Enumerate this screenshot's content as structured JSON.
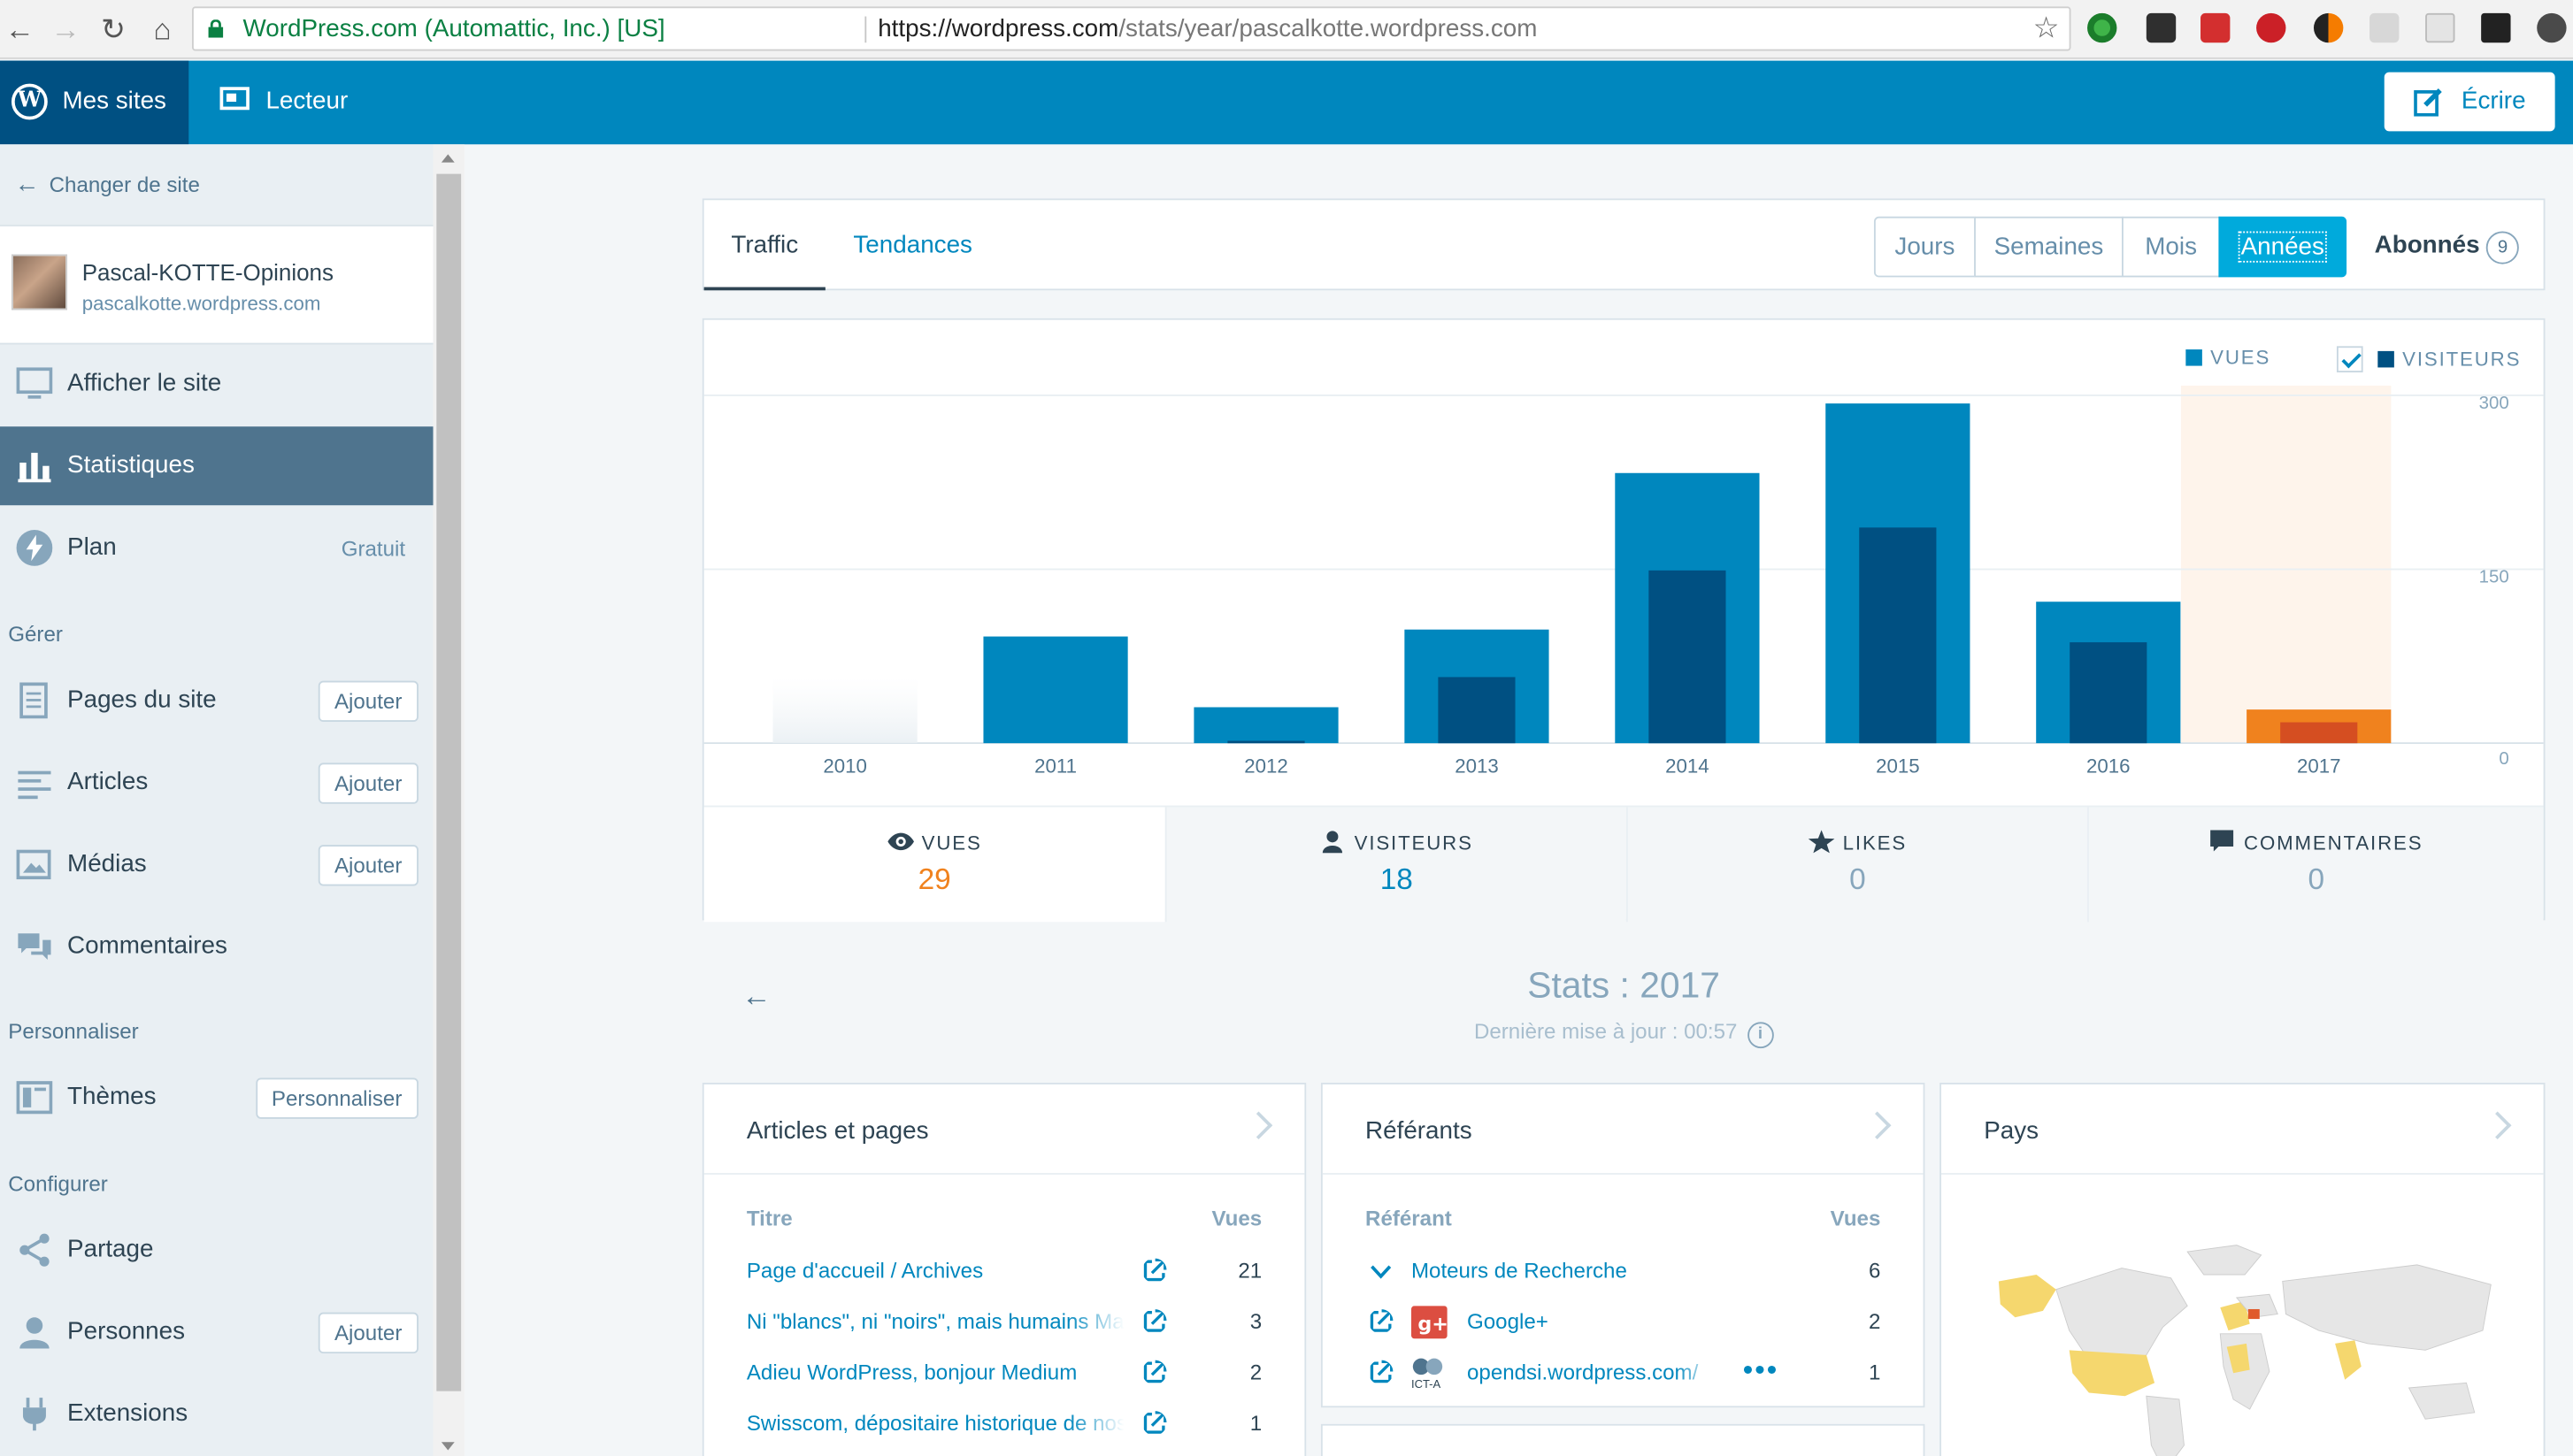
{
  "browser": {
    "secure_label": "WordPress.com (Automattic, Inc.) [US]",
    "url_host": "https://wordpress.com",
    "url_path": "/stats/year/pascalkotte.wordpress.com"
  },
  "masterbar": {
    "my_sites": "Mes sites",
    "reader": "Lecteur",
    "write": "Écrire"
  },
  "sidebar": {
    "change_site": "Changer de site",
    "site_name": "Pascal-KOTTE-Opinions",
    "site_url": "pascalkotte.wordpress.com",
    "view_site": "Afficher le site",
    "stats": "Statistiques",
    "plan": "Plan",
    "plan_badge": "Gratuit",
    "manage_heading": "Gérer",
    "pages": "Pages du site",
    "posts": "Articles",
    "media": "Médias",
    "comments": "Commentaires",
    "add_label": "Ajouter",
    "personalize_heading": "Personnaliser",
    "themes": "Thèmes",
    "customize_label": "Personnaliser",
    "configure_heading": "Configurer",
    "sharing": "Partage",
    "people": "Personnes",
    "plugins": "Extensions"
  },
  "tabs": {
    "traffic": "Traffic",
    "insights": "Tendances",
    "periods": [
      "Jours",
      "Semaines",
      "Mois",
      "Années"
    ],
    "active_period": "Années",
    "followers_label": "Abonnés",
    "followers_count": "9"
  },
  "legend": {
    "views": "VUES",
    "visitors": "VISITEURS"
  },
  "colors": {
    "views": "#0087be",
    "visitors": "#005082",
    "selected_views": "#f0821e",
    "selected_visitors": "#d54e21",
    "selected_bg": "#fef4eb",
    "accent": "#00aadc"
  },
  "chart_data": {
    "type": "bar",
    "categories": [
      "2010",
      "2011",
      "2012",
      "2013",
      "2014",
      "2015",
      "2016",
      "2017"
    ],
    "series": [
      {
        "name": "VUES",
        "values": [
          0,
          92,
          31,
          98,
          233,
          293,
          122,
          29
        ]
      },
      {
        "name": "VISITEURS",
        "values": [
          0,
          0,
          2,
          57,
          149,
          186,
          87,
          18
        ]
      }
    ],
    "ylim": [
      0,
      300
    ],
    "yticks": [
      "0",
      "150",
      "300"
    ],
    "selected": "2017",
    "grid": true,
    "legend_position": "top-right"
  },
  "summary": {
    "views_label": "VUES",
    "views_value": "29",
    "visitors_label": "VISITEURS",
    "visitors_value": "18",
    "likes_label": "LIKES",
    "likes_value": "0",
    "comments_label": "COMMENTAIRES",
    "comments_value": "0"
  },
  "period": {
    "title": "Stats : 2017",
    "updated": "Dernière mise à jour : 00:57"
  },
  "posts_module": {
    "title": "Articles et pages",
    "col_title": "Titre",
    "col_views": "Vues",
    "rows": [
      {
        "title": "Page d'accueil / Archives",
        "views": "21"
      },
      {
        "title": "Ni \"blancs\", ni \"noirs\", mais humains Ma",
        "views": "3"
      },
      {
        "title": "Adieu WordPress, bonjour Medium",
        "views": "2"
      },
      {
        "title": "Swisscom, dépositaire historique de nos",
        "views": "1"
      }
    ]
  },
  "referrers_module": {
    "title": "Référants",
    "col_title": "Référant",
    "col_views": "Vues",
    "rows": [
      {
        "title": "Moteurs de Recherche",
        "views": "6"
      },
      {
        "title": "Google+",
        "views": "2"
      },
      {
        "title": "opendsi.wordpress.com/",
        "views": "1",
        "icon_text": "ICT-A"
      }
    ]
  },
  "countries_module": {
    "title": "Pays"
  }
}
